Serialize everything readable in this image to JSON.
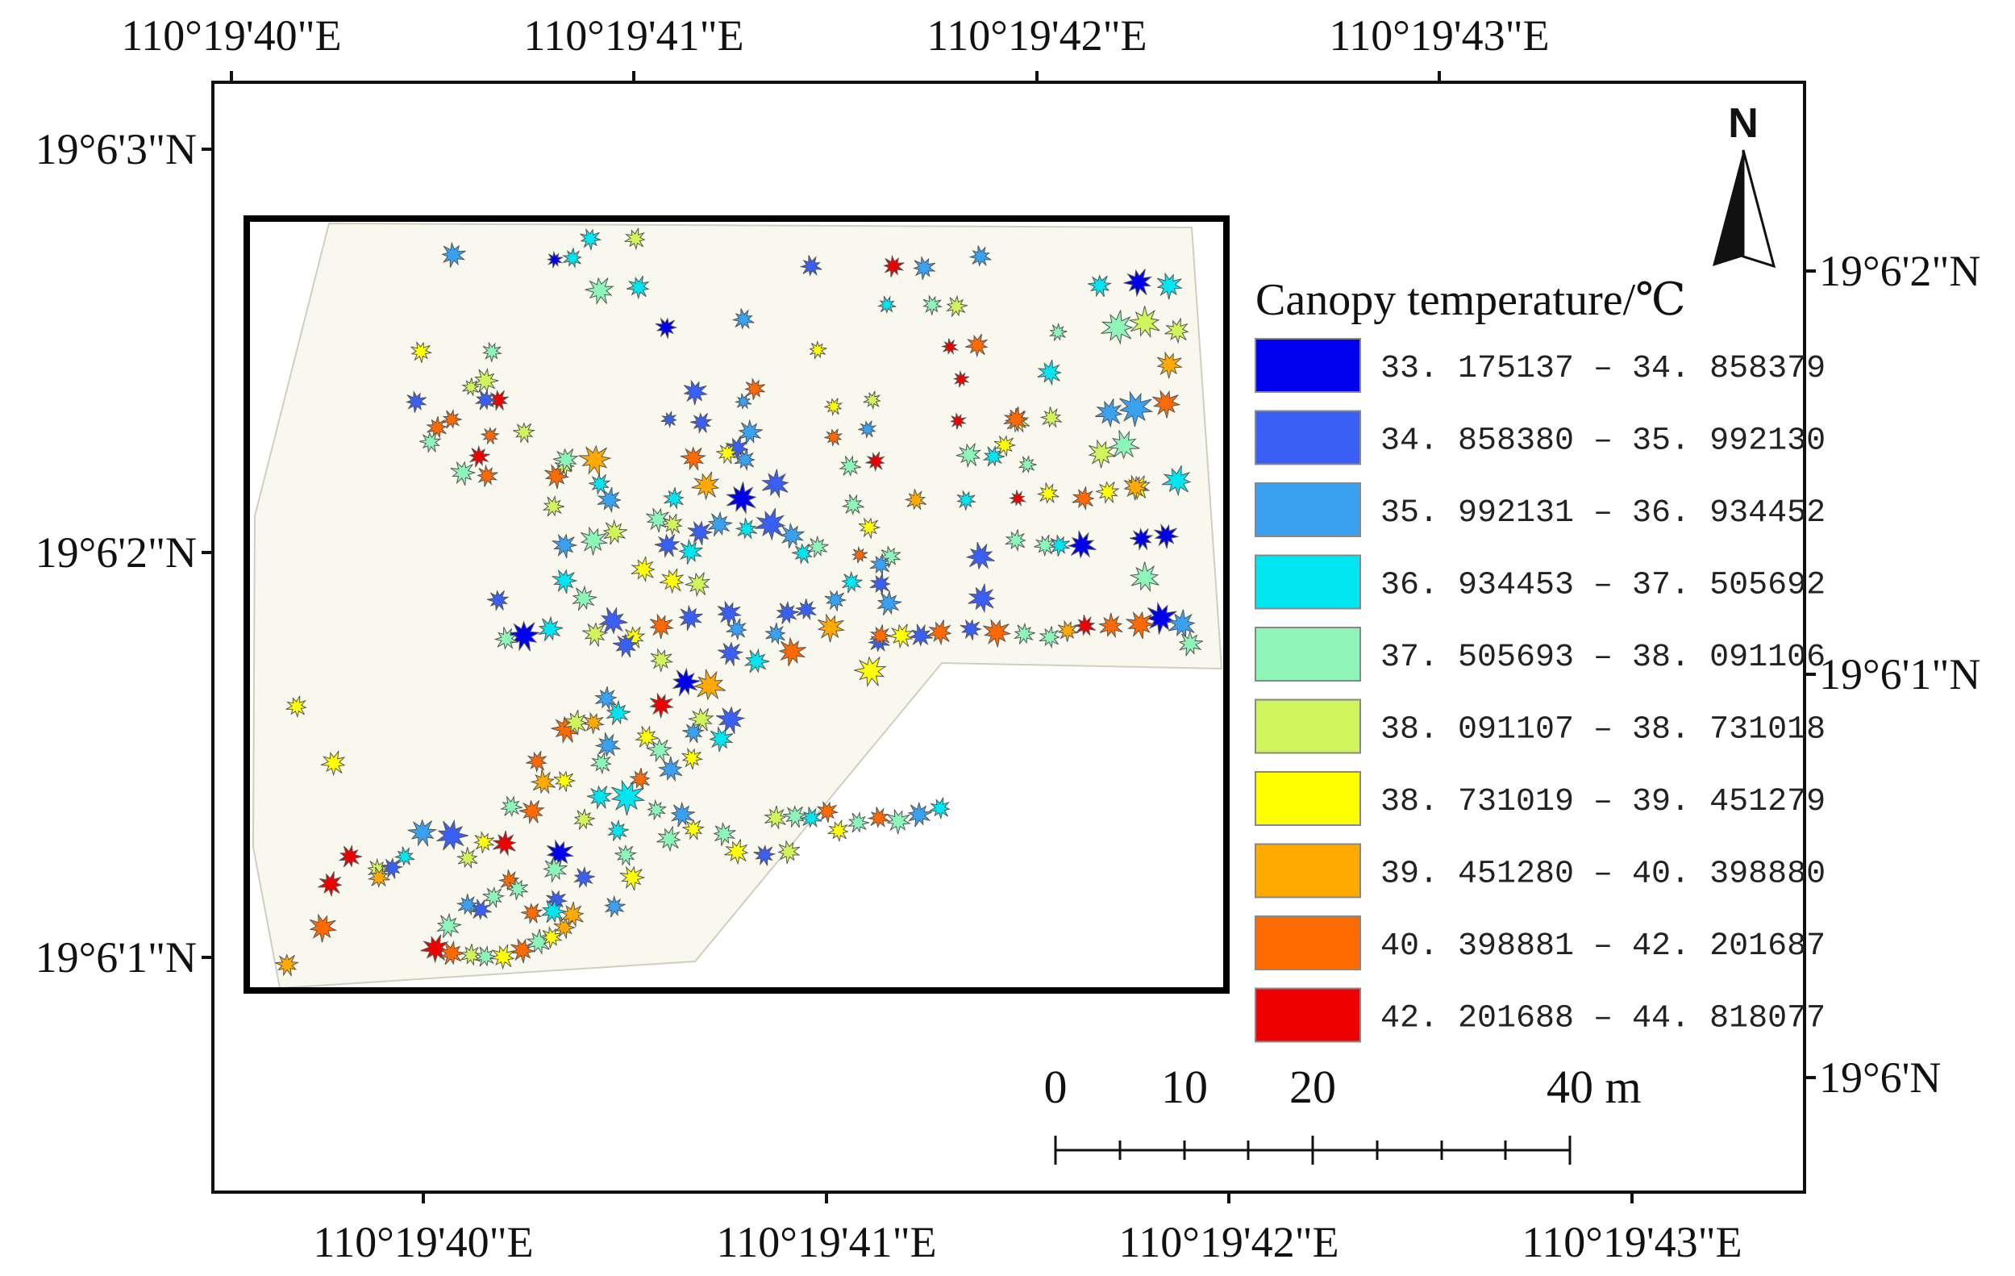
{
  "map": {
    "top_longitudes": [
      "110°19'40\"E",
      "110°19'41\"E",
      "110°19'42\"E",
      "110°19'43\"E"
    ],
    "bottom_longitudes": [
      "110°19'40\"E",
      "110°19'41\"E",
      "110°19'42\"E",
      "110°19'43\"E"
    ],
    "left_latitudes": [
      "19°6'3\"N",
      "19°6'2\"N",
      "19°6'1\"N"
    ],
    "right_latitudes": [
      "19°6'2\"N",
      "19°6'1\"N",
      "19°6'N"
    ],
    "north_label": "N"
  },
  "legend": {
    "title": "Canopy temperature/℃",
    "items": [
      {
        "range": "33. 175137 – 34. 858379",
        "color": "#0000ee"
      },
      {
        "range": "34. 858380 – 35. 992130",
        "color": "#3a5ff5"
      },
      {
        "range": "35. 992131 – 36. 934452",
        "color": "#3aa0f0"
      },
      {
        "range": "36. 934453 – 37. 505692",
        "color": "#00e6f0"
      },
      {
        "range": "37. 505693 – 38. 091106",
        "color": "#8ef5b8"
      },
      {
        "range": "38. 091107 – 38. 731018",
        "color": "#d0f55c"
      },
      {
        "range": "38. 731019 – 39. 451279",
        "color": "#ffff00"
      },
      {
        "range": "39. 451280 – 40. 398880",
        "color": "#ffaa00"
      },
      {
        "range": "40. 398881 – 42. 201687",
        "color": "#ff6a00"
      },
      {
        "range": "42. 201688 – 44. 818077",
        "color": "#ee0000"
      }
    ]
  },
  "scale_bar": {
    "labels": [
      "0",
      "10",
      "20",
      "40 m"
    ]
  }
}
